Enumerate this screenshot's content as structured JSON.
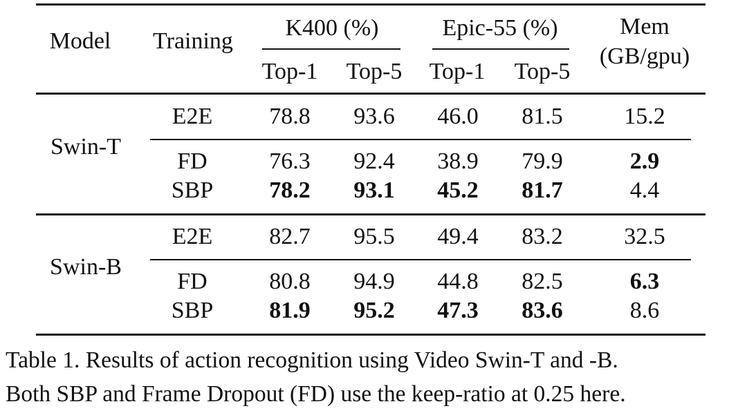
{
  "table": {
    "header": {
      "model": "Model",
      "training": "Training",
      "k400": "K400 (%)",
      "epic": "Epic-55 (%)",
      "mem_line1": "Mem",
      "mem_line2": "(GB/gpu)",
      "top1": "Top-1",
      "top5": "Top-5"
    },
    "groups": [
      {
        "model": "Swin-T",
        "rows": [
          {
            "training": "E2E",
            "k400_top1": "78.8",
            "k400_top5": "93.6",
            "epic_top1": "46.0",
            "epic_top5": "81.5",
            "mem": "15.2"
          },
          {
            "training": "FD",
            "k400_top1": "76.3",
            "k400_top5": "92.4",
            "epic_top1": "38.9",
            "epic_top5": "79.9",
            "mem": "2.9"
          },
          {
            "training": "SBP",
            "k400_top1": "78.2",
            "k400_top5": "93.1",
            "epic_top1": "45.2",
            "epic_top5": "81.7",
            "mem": "4.4"
          }
        ]
      },
      {
        "model": "Swin-B",
        "rows": [
          {
            "training": "E2E",
            "k400_top1": "82.7",
            "k400_top5": "95.5",
            "epic_top1": "49.4",
            "epic_top5": "83.2",
            "mem": "32.5"
          },
          {
            "training": "FD",
            "k400_top1": "80.8",
            "k400_top5": "94.9",
            "epic_top1": "44.8",
            "epic_top5": "82.5",
            "mem": "6.3"
          },
          {
            "training": "SBP",
            "k400_top1": "81.9",
            "k400_top5": "95.2",
            "epic_top1": "47.3",
            "epic_top5": "83.6",
            "mem": "8.6"
          }
        ]
      }
    ],
    "bold_cells": [
      "groups.0.rows.1.mem",
      "groups.0.rows.2.k400_top1",
      "groups.0.rows.2.k400_top5",
      "groups.0.rows.2.epic_top1",
      "groups.0.rows.2.epic_top5",
      "groups.1.rows.1.mem",
      "groups.1.rows.2.k400_top1",
      "groups.1.rows.2.k400_top5",
      "groups.1.rows.2.epic_top1",
      "groups.1.rows.2.epic_top5"
    ]
  },
  "caption": {
    "line1": "Table 1. Results of action recognition using Video Swin-T and -B.",
    "line2": "Both SBP and Frame Dropout (FD) use the keep-ratio at 0.25 here."
  }
}
